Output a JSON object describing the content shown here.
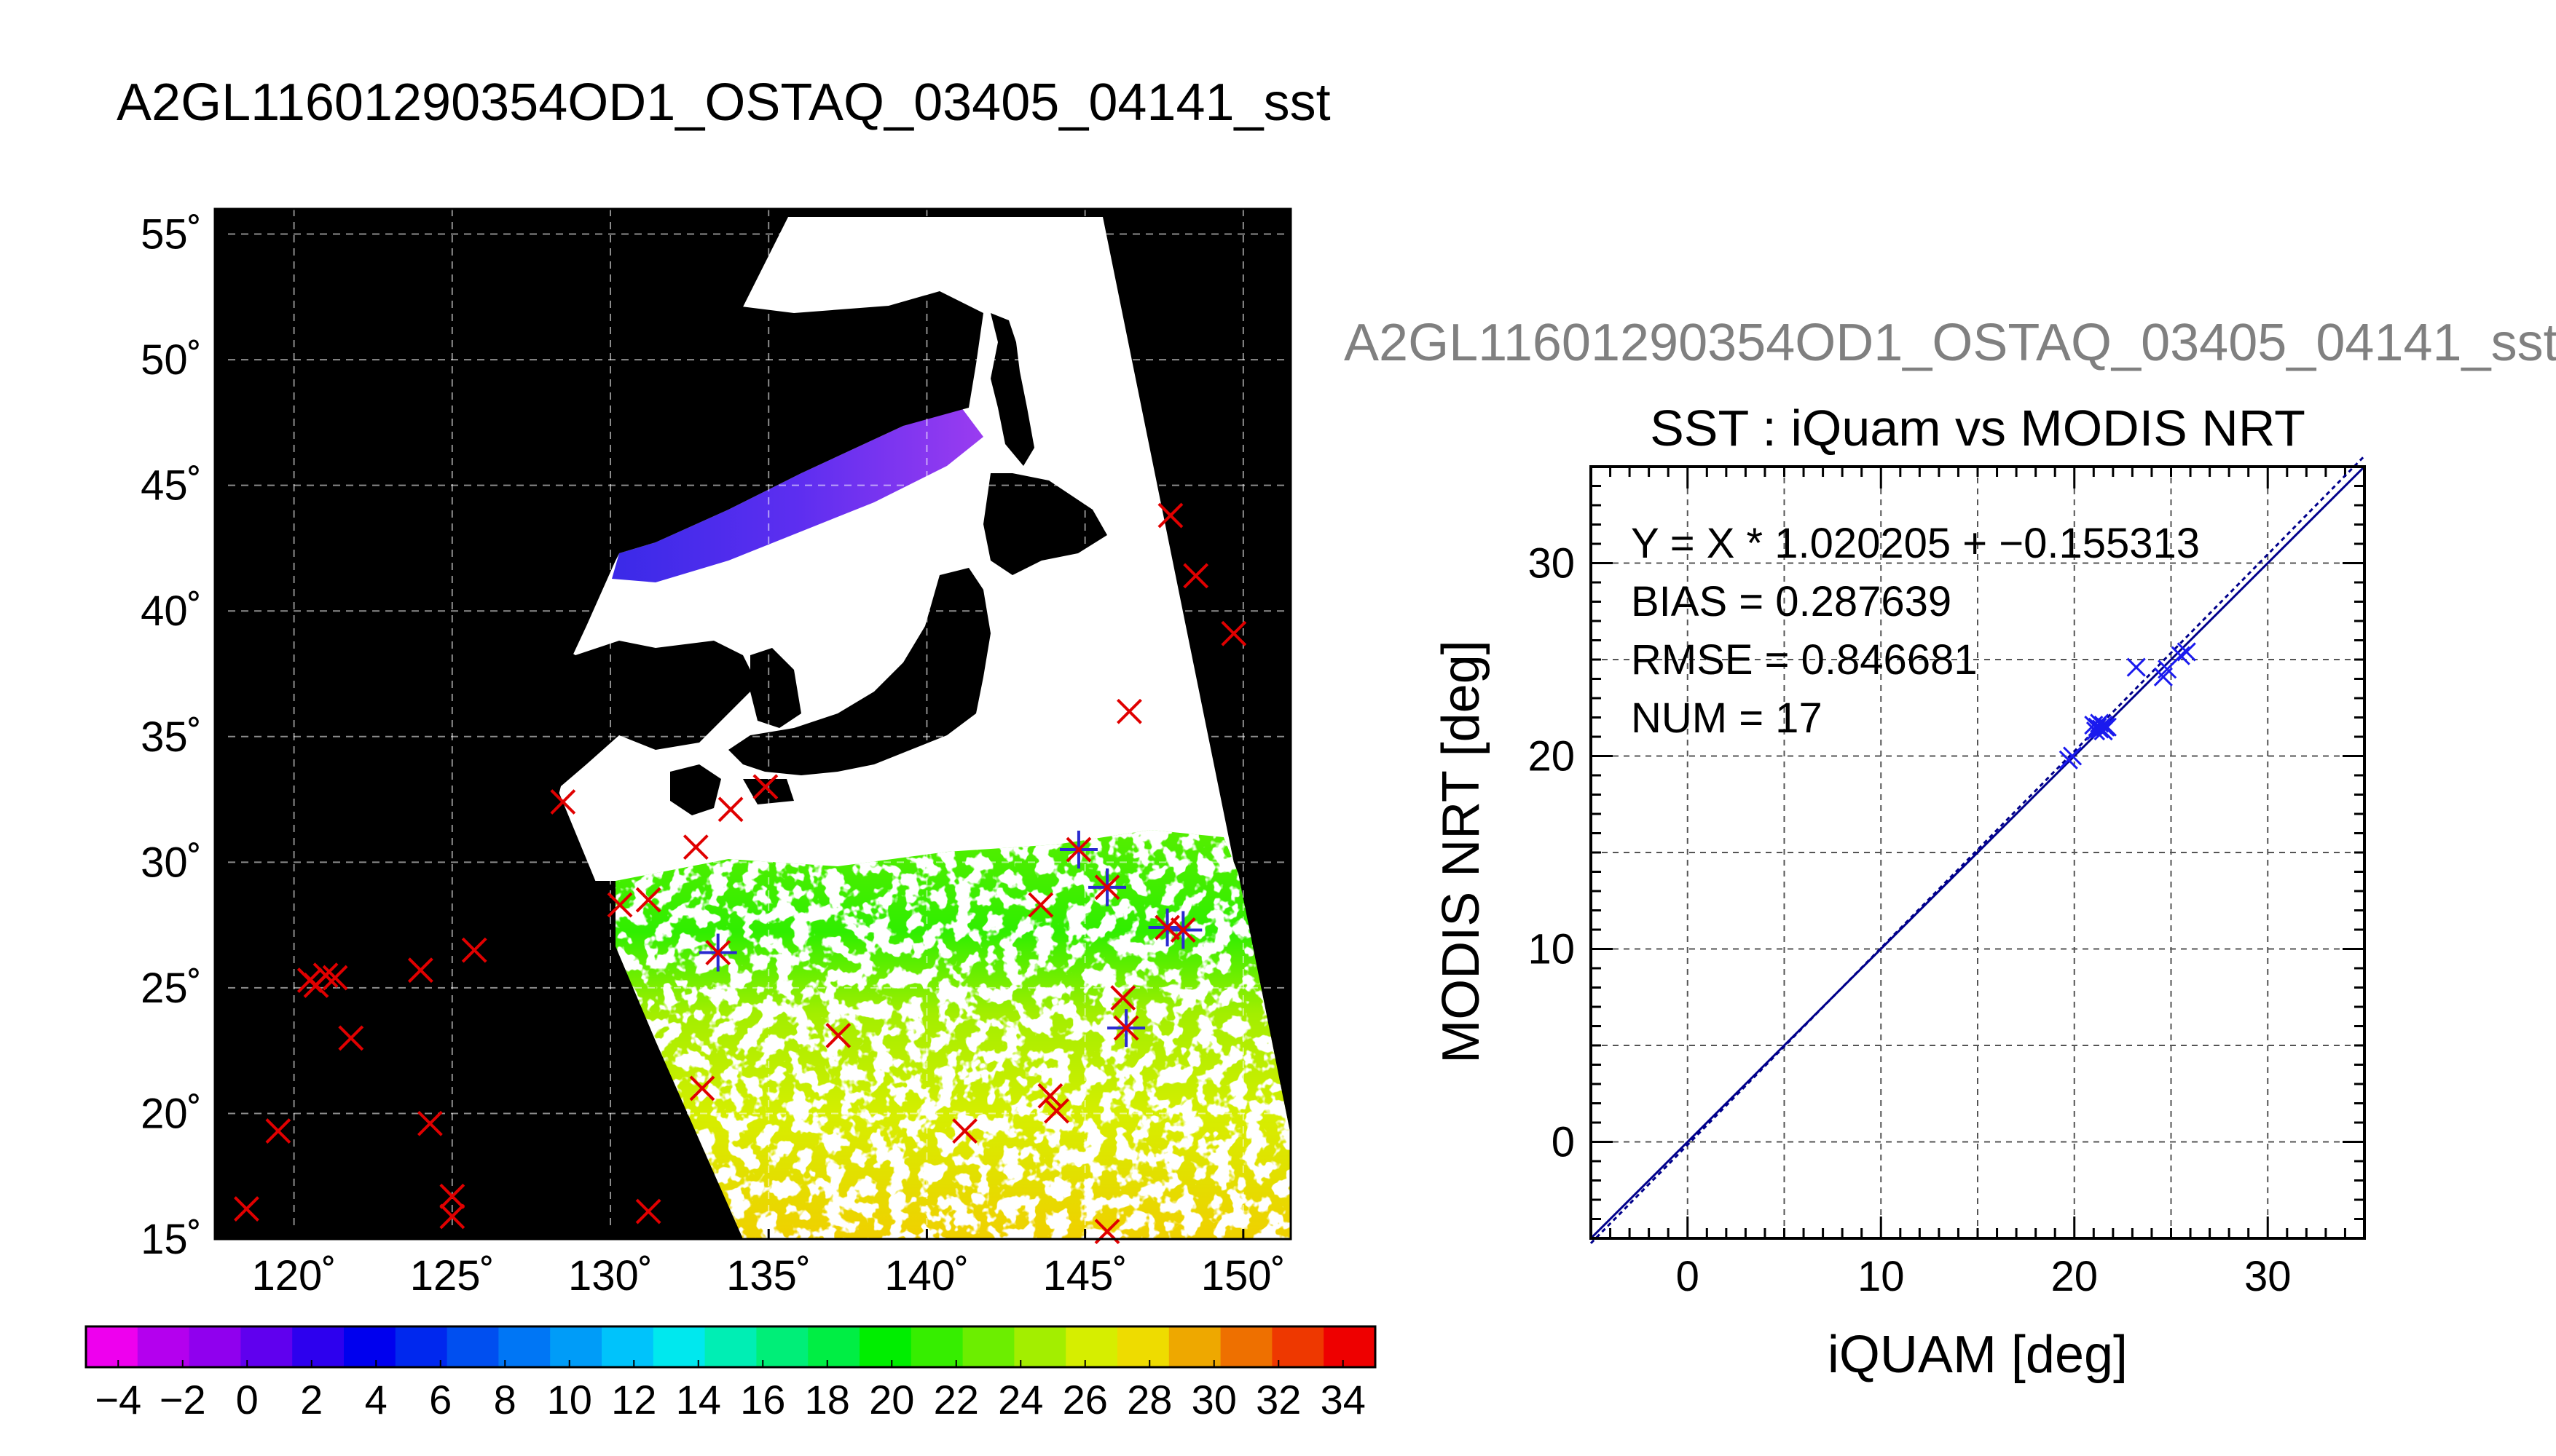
{
  "main_title": "A2GL11601290354OD1_OSTAQ_03405_04141_sst",
  "secondary_title": "A2GL11601290354OD1_OSTAQ_03405_04141_sst",
  "chart_data": [
    {
      "type": "map",
      "lon_ticks": [
        "120˚",
        "125˚",
        "130˚",
        "135˚",
        "140˚",
        "145˚",
        "150˚"
      ],
      "lat_ticks": [
        "15˚",
        "20˚",
        "25˚",
        "30˚",
        "35˚",
        "40˚",
        "45˚",
        "50˚",
        "55˚"
      ],
      "lon_range": [
        117.5,
        151.5
      ],
      "lat_range": [
        15,
        56
      ],
      "grid": true,
      "insitu_markers": [
        {
          "lon": 118.5,
          "lat": 16.2
        },
        {
          "lon": 119.5,
          "lat": 19.3
        },
        {
          "lon": 120.5,
          "lat": 25.3
        },
        {
          "lon": 120.7,
          "lat": 25.1
        },
        {
          "lon": 121.0,
          "lat": 25.5
        },
        {
          "lon": 121.3,
          "lat": 25.4
        },
        {
          "lon": 121.8,
          "lat": 23.0
        },
        {
          "lon": 124.0,
          "lat": 25.7
        },
        {
          "lon": 124.3,
          "lat": 19.6
        },
        {
          "lon": 125.0,
          "lat": 16.7
        },
        {
          "lon": 125.0,
          "lat": 15.9
        },
        {
          "lon": 125.7,
          "lat": 26.5
        },
        {
          "lon": 128.5,
          "lat": 32.4
        },
        {
          "lon": 130.3,
          "lat": 28.3
        },
        {
          "lon": 131.2,
          "lat": 28.5
        },
        {
          "lon": 131.2,
          "lat": 16.1
        },
        {
          "lon": 132.7,
          "lat": 30.6
        },
        {
          "lon": 132.9,
          "lat": 21.0
        },
        {
          "lon": 133.4,
          "lat": 26.4
        },
        {
          "lon": 133.8,
          "lat": 32.1
        },
        {
          "lon": 134.9,
          "lat": 33.0
        },
        {
          "lon": 137.2,
          "lat": 23.1
        },
        {
          "lon": 141.2,
          "lat": 19.3
        },
        {
          "lon": 143.6,
          "lat": 28.3
        },
        {
          "lon": 143.9,
          "lat": 20.7
        },
        {
          "lon": 144.1,
          "lat": 20.1
        },
        {
          "lon": 144.8,
          "lat": 30.5
        },
        {
          "lon": 145.7,
          "lat": 29.0
        },
        {
          "lon": 146.2,
          "lat": 24.6
        },
        {
          "lon": 146.3,
          "lat": 23.4
        },
        {
          "lon": 146.4,
          "lat": 36.0
        },
        {
          "lon": 147.6,
          "lat": 27.4
        },
        {
          "lon": 148.1,
          "lat": 27.3
        },
        {
          "lon": 147.7,
          "lat": 43.8
        },
        {
          "lon": 148.5,
          "lat": 41.4
        },
        {
          "lon": 149.7,
          "lat": 39.1
        },
        {
          "lon": 145.7,
          "lat": 15.3
        }
      ],
      "matchup_markers": [
        {
          "lon": 133.4,
          "lat": 26.4
        },
        {
          "lon": 144.8,
          "lat": 30.5
        },
        {
          "lon": 145.7,
          "lat": 29.0
        },
        {
          "lon": 146.3,
          "lat": 23.4
        },
        {
          "lon": 147.6,
          "lat": 27.4
        },
        {
          "lon": 148.1,
          "lat": 27.3
        }
      ],
      "colorbar": {
        "tick_labels": [
          "−4",
          "−2",
          "0",
          "2",
          "4",
          "6",
          "8",
          "10",
          "12",
          "14",
          "16",
          "18",
          "20",
          "22",
          "24",
          "26",
          "28",
          "30",
          "32",
          "34"
        ],
        "range": [
          -5,
          35
        ],
        "colors": [
          "#ee00ee",
          "#b400ee",
          "#9000ee",
          "#6000ee",
          "#2d00ee",
          "#0000ee",
          "#0028ee",
          "#004ff0",
          "#0076f5",
          "#009cf8",
          "#00c3fb",
          "#00e8ee",
          "#00eeb4",
          "#00ee78",
          "#00ee44",
          "#00ee00",
          "#36ee00",
          "#6cee00",
          "#a3ee00",
          "#d6ee00",
          "#eedc00",
          "#eea800",
          "#ee7000",
          "#ee3800",
          "#ee0000"
        ]
      }
    },
    {
      "type": "scatter",
      "title": "SST : iQuam vs MODIS NRT",
      "xlabel": "iQUAM [deg]",
      "ylabel": "MODIS NRT [deg]",
      "xlim": [
        -5,
        35
      ],
      "ylim": [
        -5,
        35
      ],
      "x_ticks": [
        "0",
        "10",
        "20",
        "30"
      ],
      "y_ticks": [
        "0",
        "10",
        "20",
        "30"
      ],
      "grid": true,
      "stats": [
        "Y = X * 1.020205 + −0.155313",
        "BIAS = 0.287639",
        "RMSE = 0.846681",
        "NUM = 17"
      ],
      "fit": {
        "slope": 1.020205,
        "intercept": -0.155313
      },
      "points": [
        {
          "x": 19.7,
          "y": 19.8
        },
        {
          "x": 19.9,
          "y": 20.0
        },
        {
          "x": 21.0,
          "y": 21.6
        },
        {
          "x": 21.2,
          "y": 21.5
        },
        {
          "x": 21.3,
          "y": 21.7
        },
        {
          "x": 21.4,
          "y": 21.4
        },
        {
          "x": 21.5,
          "y": 21.6
        },
        {
          "x": 21.6,
          "y": 21.5
        },
        {
          "x": 21.1,
          "y": 21.3
        },
        {
          "x": 21.3,
          "y": 21.4
        },
        {
          "x": 21.5,
          "y": 21.3
        },
        {
          "x": 21.7,
          "y": 21.5
        },
        {
          "x": 23.2,
          "y": 24.6
        },
        {
          "x": 24.6,
          "y": 24.1
        },
        {
          "x": 24.8,
          "y": 24.5
        },
        {
          "x": 25.5,
          "y": 25.2
        },
        {
          "x": 25.8,
          "y": 25.4
        }
      ]
    }
  ]
}
